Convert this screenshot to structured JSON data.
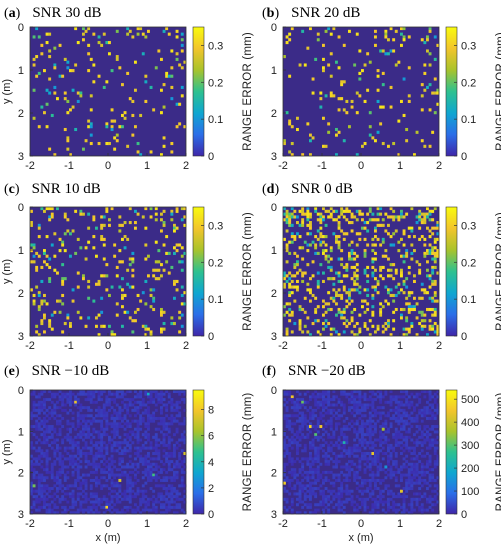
{
  "colors": {
    "background": "#3b2b88",
    "scale": [
      "#3e26a8",
      "#2b6ee8",
      "#0fa6d0",
      "#2ec18f",
      "#a9c32c",
      "#f2c52c",
      "#f9fb0e"
    ]
  },
  "chart_data": [
    {
      "type": "heatmap",
      "letter": "a",
      "title": "SNR 30 dB",
      "xlabel": "",
      "ylabel": "y (m)",
      "colorbar_label": "RANGE ERROR (mm)",
      "xlim": [
        -2,
        2
      ],
      "ylim": [
        0,
        3
      ],
      "x_ticks": [
        "-2",
        "-1",
        "0",
        "1",
        "2"
      ],
      "y_ticks": [
        "0",
        "1",
        "2",
        "3"
      ],
      "clim": [
        0,
        0.35
      ],
      "colorbar_ticks": [
        "0",
        "0.1",
        "0.2",
        "0.3"
      ],
      "colorbar_tick_values": [
        0,
        0.1,
        0.2,
        0.3
      ],
      "hot_pixel_fraction": 0.06,
      "outlier_max": 0.33
    },
    {
      "type": "heatmap",
      "letter": "b",
      "title": "SNR 20 dB",
      "xlabel": "",
      "ylabel": "",
      "colorbar_label": "RANGE ERROR (mm)",
      "xlim": [
        -2,
        2
      ],
      "ylim": [
        0,
        3
      ],
      "x_ticks": [
        "-2",
        "-1",
        "0",
        "1",
        "2"
      ],
      "y_ticks": [
        "0",
        "1",
        "2",
        "3"
      ],
      "clim": [
        0,
        0.35
      ],
      "colorbar_ticks": [
        "0",
        "0.1",
        "0.2",
        "0.3"
      ],
      "colorbar_tick_values": [
        0,
        0.1,
        0.2,
        0.3
      ],
      "hot_pixel_fraction": 0.05,
      "outlier_max": 0.33
    },
    {
      "type": "heatmap",
      "letter": "c",
      "title": "SNR 10 dB",
      "xlabel": "",
      "ylabel": "y (m)",
      "colorbar_label": "RANGE ERROR (mm)",
      "xlim": [
        -2,
        2
      ],
      "ylim": [
        0,
        3
      ],
      "x_ticks": [
        "-2",
        "-1",
        "0",
        "1",
        "2"
      ],
      "y_ticks": [
        "0",
        "1",
        "2",
        "3"
      ],
      "clim": [
        0,
        0.35
      ],
      "colorbar_ticks": [
        "0",
        "0.1",
        "0.2",
        "0.3"
      ],
      "colorbar_tick_values": [
        0,
        0.1,
        0.2,
        0.3
      ],
      "hot_pixel_fraction": 0.1,
      "outlier_max": 0.33
    },
    {
      "type": "heatmap",
      "letter": "d",
      "title": "SNR 0 dB",
      "xlabel": "",
      "ylabel": "",
      "colorbar_label": "RANGE ERROR (mm)",
      "xlim": [
        -2,
        2
      ],
      "ylim": [
        0,
        3
      ],
      "x_ticks": [
        "-2",
        "-1",
        "0",
        "1",
        "2"
      ],
      "y_ticks": [
        "0",
        "1",
        "2",
        "3"
      ],
      "clim": [
        0,
        0.35
      ],
      "colorbar_ticks": [
        "0",
        "0.1",
        "0.2",
        "0.3"
      ],
      "colorbar_tick_values": [
        0,
        0.1,
        0.2,
        0.3
      ],
      "hot_pixel_fraction": 0.22,
      "outlier_max": 0.33
    },
    {
      "type": "heatmap",
      "letter": "e",
      "title": "SNR −10 dB",
      "xlabel": "x (m)",
      "ylabel": "y (m)",
      "colorbar_label": "RANGE ERROR (mm)",
      "xlim": [
        -2,
        2
      ],
      "ylim": [
        0,
        3
      ],
      "x_ticks": [
        "-2",
        "-1",
        "0",
        "1",
        "2"
      ],
      "y_ticks": [
        "0",
        "1",
        "2",
        "3"
      ],
      "clim": [
        0,
        9.5
      ],
      "colorbar_ticks": [
        "0",
        "2",
        "4",
        "6",
        "8"
      ],
      "colorbar_tick_values": [
        0,
        2,
        4,
        6,
        8
      ],
      "hot_pixel_fraction": 0.005,
      "outlier_max": 9
    },
    {
      "type": "heatmap",
      "letter": "f",
      "title": "SNR −20 dB",
      "xlabel": "x (m)",
      "ylabel": "",
      "colorbar_label": "RANGE ERROR (mm)",
      "xlim": [
        -2,
        2
      ],
      "ylim": [
        0,
        3
      ],
      "x_ticks": [
        "-2",
        "-1",
        "0",
        "1",
        "2"
      ],
      "y_ticks": [
        "0",
        "1",
        "2",
        "3"
      ],
      "clim": [
        0,
        540
      ],
      "colorbar_ticks": [
        "0",
        "100",
        "200",
        "300",
        "400",
        "500"
      ],
      "colorbar_tick_values": [
        0,
        100,
        200,
        300,
        400,
        500
      ],
      "hot_pixel_fraction": 0.002,
      "outlier_max": 500
    }
  ]
}
